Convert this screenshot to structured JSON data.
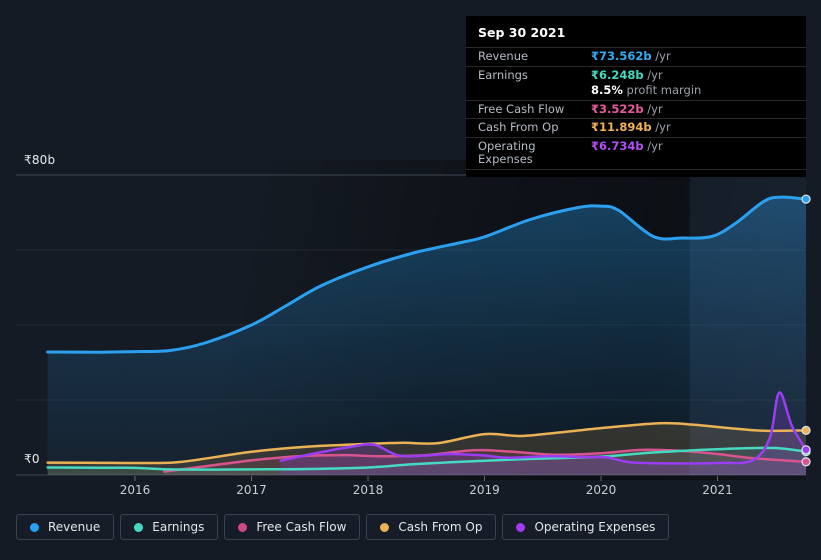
{
  "tooltip": {
    "date": "Sep 30 2021",
    "rows": [
      {
        "key": "revenue",
        "label": "Revenue",
        "value": "₹73.562b",
        "suffix": "/yr",
        "color": "#36aaf2"
      },
      {
        "key": "earnings",
        "label": "Earnings",
        "value": "₹6.248b",
        "suffix": "/yr",
        "color": "#45d9c2",
        "sub": {
          "strong": "8.5%",
          "text": "profit margin"
        }
      },
      {
        "key": "free-cash-flow",
        "label": "Free Cash Flow",
        "value": "₹3.522b",
        "suffix": "/yr",
        "color": "#ea5a9e"
      },
      {
        "key": "cash-from-op",
        "label": "Cash From Op",
        "value": "₹11.894b",
        "suffix": "/yr",
        "color": "#f0b257"
      },
      {
        "key": "operating-expenses",
        "label": "Operating Expenses",
        "value": "₹6.734b",
        "suffix": "/yr",
        "color": "#b44ff2"
      }
    ]
  },
  "legend": {
    "items": [
      {
        "key": "revenue",
        "label": "Revenue",
        "color": "#2ba0f0"
      },
      {
        "key": "earnings",
        "label": "Earnings",
        "color": "#45d9c2"
      },
      {
        "key": "free-cash-flow",
        "label": "Free Cash Flow",
        "color": "#cf4984"
      },
      {
        "key": "cash-from-op",
        "label": "Cash From Op",
        "color": "#eab156"
      },
      {
        "key": "operating-expenses",
        "label": "Operating Expenses",
        "color": "#a33bf2"
      }
    ]
  },
  "chart_data": {
    "type": "area",
    "unit": "₹ billions per year",
    "grid": true,
    "legend_position": "bottom",
    "y_axis": {
      "labels": [
        "₹80b",
        "₹0"
      ],
      "min": 0,
      "max": 80,
      "gridlines": [
        80,
        60,
        40,
        20,
        0
      ]
    },
    "x_axis": {
      "ticks": [
        "2016",
        "2017",
        "2018",
        "2019",
        "2020",
        "2021"
      ],
      "range_years": [
        2015.25,
        2021.76
      ]
    },
    "highlight_band_start_year": 2020.76,
    "series": [
      {
        "key": "revenue",
        "name": "Revenue",
        "color": "#2ba0f0",
        "end_value_label": "₹73.562b /yr",
        "points": [
          [
            2015.25,
            32.8
          ],
          [
            2015.7,
            32.75
          ],
          [
            2016,
            32.9
          ],
          [
            2016.3,
            33.2
          ],
          [
            2016.6,
            35.2
          ],
          [
            2017,
            40
          ],
          [
            2017.3,
            45.2
          ],
          [
            2017.6,
            50.5
          ],
          [
            2018,
            55.5
          ],
          [
            2018.4,
            59.3
          ],
          [
            2018.8,
            62
          ],
          [
            2019,
            63.5
          ],
          [
            2019.4,
            68.2
          ],
          [
            2019.8,
            71.3
          ],
          [
            2020,
            71.7
          ],
          [
            2020.15,
            70.6
          ],
          [
            2020.45,
            63.6
          ],
          [
            2020.7,
            63.2
          ],
          [
            2020.95,
            63.6
          ],
          [
            2021.15,
            67
          ],
          [
            2021.4,
            73
          ],
          [
            2021.55,
            74.1
          ],
          [
            2021.76,
            73.562
          ]
        ]
      },
      {
        "key": "free_cash_flow",
        "name": "Free Cash Flow",
        "color": "#d8548e",
        "end_value_label": "₹3.522b /yr",
        "points": [
          [
            2016.25,
            0.9
          ],
          [
            2016.6,
            2.3
          ],
          [
            2017,
            3.9
          ],
          [
            2017.4,
            5.0
          ],
          [
            2017.8,
            5.3
          ],
          [
            2018.1,
            5.0
          ],
          [
            2018.5,
            5.3
          ],
          [
            2018.9,
            6.6
          ],
          [
            2019.2,
            6.3
          ],
          [
            2019.6,
            5.4
          ],
          [
            2020,
            5.8
          ],
          [
            2020.35,
            6.7
          ],
          [
            2020.7,
            6.4
          ],
          [
            2021,
            5.6
          ],
          [
            2021.3,
            4.5
          ],
          [
            2021.76,
            3.522
          ]
        ]
      },
      {
        "key": "earnings",
        "name": "Earnings",
        "color": "#45d9c2",
        "end_value_label": "₹6.248b /yr",
        "points": [
          [
            2015.25,
            2.0
          ],
          [
            2015.7,
            1.95
          ],
          [
            2016,
            1.9
          ],
          [
            2016.3,
            1.5
          ],
          [
            2016.7,
            1.45
          ],
          [
            2017,
            1.5
          ],
          [
            2017.5,
            1.6
          ],
          [
            2018,
            2.0
          ],
          [
            2018.4,
            2.9
          ],
          [
            2019,
            3.8
          ],
          [
            2019.5,
            4.4
          ],
          [
            2020,
            4.9
          ],
          [
            2020.4,
            5.9
          ],
          [
            2020.8,
            6.6
          ],
          [
            2021.2,
            7.1
          ],
          [
            2021.5,
            7.2
          ],
          [
            2021.76,
            6.248
          ]
        ]
      },
      {
        "key": "cash_from_op",
        "name": "Cash From Op",
        "color": "#eab156",
        "end_value_label": "₹11.894b /yr",
        "points": [
          [
            2015.25,
            3.3
          ],
          [
            2015.8,
            3.25
          ],
          [
            2016.1,
            3.2
          ],
          [
            2016.4,
            3.5
          ],
          [
            2017,
            6.2
          ],
          [
            2017.5,
            7.6
          ],
          [
            2018,
            8.3
          ],
          [
            2018.3,
            8.6
          ],
          [
            2018.6,
            8.5
          ],
          [
            2019,
            10.9
          ],
          [
            2019.3,
            10.4
          ],
          [
            2019.6,
            11.2
          ],
          [
            2020,
            12.5
          ],
          [
            2020.5,
            13.8
          ],
          [
            2020.8,
            13.4
          ],
          [
            2021.1,
            12.5
          ],
          [
            2021.4,
            11.8
          ],
          [
            2021.76,
            11.894
          ]
        ]
      },
      {
        "key": "operating_expenses",
        "name": "Operating Expenses",
        "color": "#9b3df2",
        "end_value_label": "₹6.734b /yr",
        "points": [
          [
            2017.25,
            3.8
          ],
          [
            2017.55,
            5.8
          ],
          [
            2017.85,
            7.5
          ],
          [
            2018.05,
            8.1
          ],
          [
            2018.25,
            5.3
          ],
          [
            2018.45,
            5.1
          ],
          [
            2018.7,
            5.6
          ],
          [
            2019,
            5.2
          ],
          [
            2019.2,
            4.6
          ],
          [
            2019.55,
            5.0
          ],
          [
            2019.85,
            4.8
          ],
          [
            2020.05,
            4.7
          ],
          [
            2020.25,
            3.4
          ],
          [
            2020.6,
            3.1
          ],
          [
            2021,
            3.2
          ],
          [
            2021.3,
            3.9
          ],
          [
            2021.45,
            10
          ],
          [
            2021.53,
            22
          ],
          [
            2021.64,
            13
          ],
          [
            2021.76,
            6.734
          ]
        ]
      }
    ]
  }
}
